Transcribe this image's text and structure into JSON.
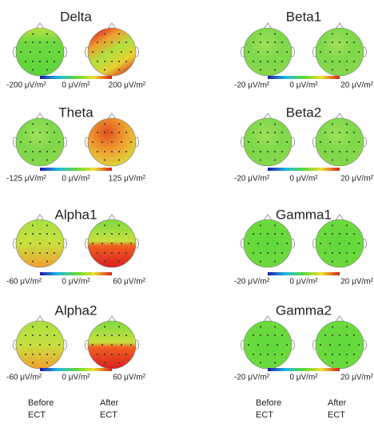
{
  "panels": [
    {
      "title": "Delta",
      "scale": [
        "-200 μV/m²",
        "0 μV/m²",
        "200 μV/m²"
      ]
    },
    {
      "title": "Theta",
      "scale": [
        "-125 μV/m²",
        "0 μV/m²",
        "125 μV/m²"
      ]
    },
    {
      "title": "Alpha1",
      "scale": [
        "-60 μV/m²",
        "0 μV/m²",
        "60 μV/m²"
      ]
    },
    {
      "title": "Alpha2",
      "scale": [
        "-60 μV/m²",
        "0 μV/m²",
        "60 μV/m²"
      ]
    },
    {
      "title": "Beta1",
      "scale": [
        "-20 μV/m²",
        "0 μV/m²",
        "20 μV/m²"
      ]
    },
    {
      "title": "Beta2",
      "scale": [
        "-20 μV/m²",
        "0 μV/m²",
        "20 μV/m²"
      ]
    },
    {
      "title": "Gamma1",
      "scale": [
        "-20 μV/m²",
        "0 μV/m²",
        "20 μV/m²"
      ]
    },
    {
      "title": "Gamma2",
      "scale": [
        "-20 μV/m²",
        "0 μV/m²",
        "20 μV/m²"
      ]
    }
  ],
  "column_labels": [
    {
      "before": [
        "Before",
        "ECT"
      ],
      "after": [
        "After",
        "ECT"
      ]
    },
    {
      "before": [
        "Before",
        "ECT"
      ],
      "after": [
        "After",
        "ECT"
      ]
    }
  ]
}
